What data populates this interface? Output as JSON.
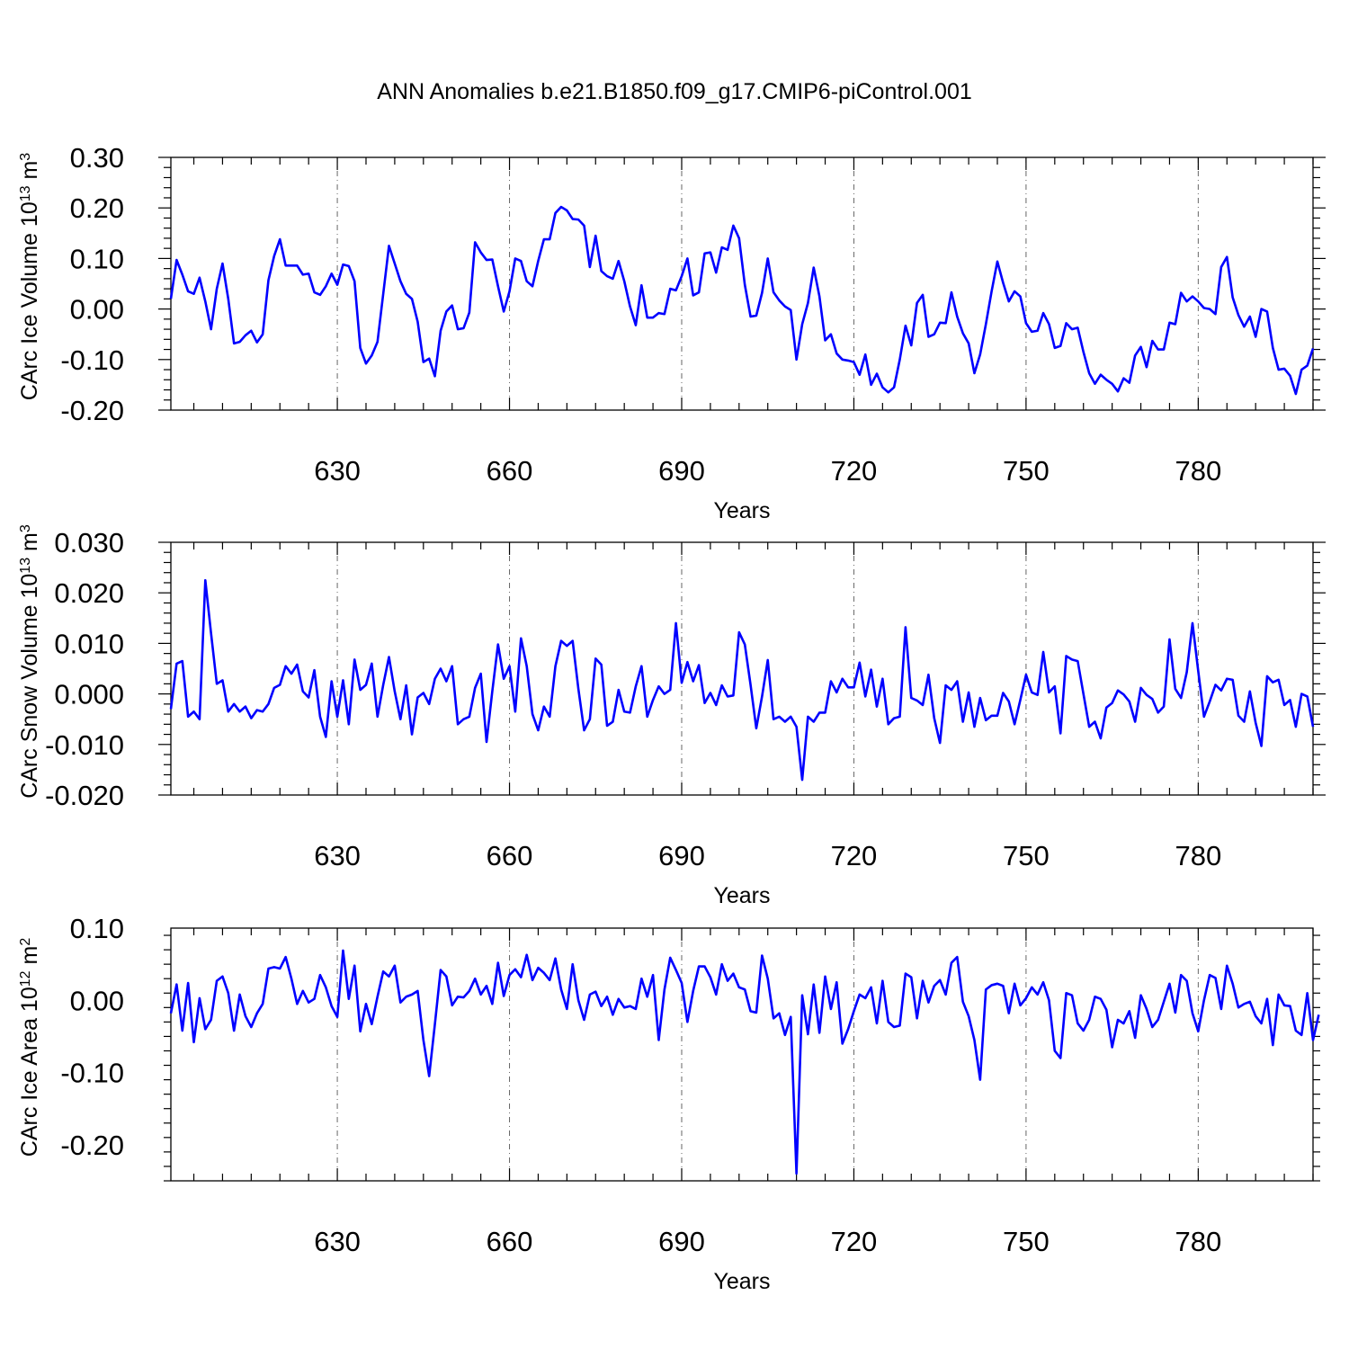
{
  "title": "ANN Anomalies b.e21.B1850.f09_g17.CMIP6-piControl.001",
  "colors": {
    "series": "#0000ff",
    "grid": "#666666",
    "axis": "#000000",
    "background": "#ffffff"
  },
  "chart_data": [
    {
      "type": "line",
      "xlabel": "Years",
      "ylabel_main": "CArc Ice Volume 10",
      "ylabel_exp": "13",
      "ylabel_unit": " m",
      "ylabel_unit_exp": "3",
      "xlim": [
        601,
        800
      ],
      "ylim": [
        -0.2,
        0.3
      ],
      "xticks": [
        630,
        660,
        690,
        720,
        750,
        780
      ],
      "xtick_labels": [
        "630",
        "660",
        "690",
        "720",
        "750",
        "780"
      ],
      "yticks": [
        -0.2,
        -0.1,
        0.0,
        0.1,
        0.2,
        0.3
      ],
      "ytick_labels": [
        "-0.20",
        "-0.10",
        "0.00",
        "0.10",
        "0.20",
        "0.30"
      ],
      "grid": "vertical dashed at major x ticks",
      "series": [
        {
          "x_start": 601,
          "x_step": 1,
          "values": [
            0.02,
            0.097,
            0.068,
            0.035,
            0.03,
            0.062,
            0.015,
            -0.04,
            0.04,
            0.09,
            0.02,
            -0.068,
            -0.065,
            -0.052,
            -0.043,
            -0.066,
            -0.05,
            0.057,
            0.105,
            0.138,
            0.086,
            0.086,
            0.086,
            0.068,
            0.07,
            0.033,
            0.028,
            0.045,
            0.07,
            0.048,
            0.088,
            0.085,
            0.055,
            -0.077,
            -0.108,
            -0.092,
            -0.065,
            0.03,
            0.125,
            0.09,
            0.055,
            0.03,
            0.02,
            -0.025,
            -0.105,
            -0.098,
            -0.133,
            -0.043,
            -0.005,
            0.007,
            -0.04,
            -0.038,
            -0.007,
            0.132,
            0.112,
            0.097,
            0.098,
            0.045,
            -0.005,
            0.035,
            0.1,
            0.095,
            0.055,
            0.045,
            0.095,
            0.138,
            0.138,
            0.19,
            0.202,
            0.195,
            0.178,
            0.177,
            0.165,
            0.083,
            0.145,
            0.075,
            0.065,
            0.06,
            0.095,
            0.055,
            0.005,
            -0.032,
            0.047,
            -0.017,
            -0.017,
            -0.008,
            -0.01,
            0.04,
            0.037,
            0.065,
            0.1,
            0.027,
            0.033,
            0.11,
            0.112,
            0.072,
            0.122,
            0.117,
            0.165,
            0.14,
            0.048,
            -0.015,
            -0.013,
            0.032,
            0.1,
            0.033,
            0.017,
            0.005,
            -0.002,
            -0.1,
            -0.03,
            0.012,
            0.082,
            0.025,
            -0.062,
            -0.05,
            -0.088,
            -0.1,
            -0.102,
            -0.105,
            -0.13,
            -0.09,
            -0.15,
            -0.128,
            -0.155,
            -0.165,
            -0.155,
            -0.1,
            -0.033,
            -0.072,
            0.012,
            0.028,
            -0.055,
            -0.05,
            -0.027,
            -0.028,
            0.033,
            -0.015,
            -0.048,
            -0.068,
            -0.127,
            -0.09,
            -0.03,
            0.035,
            0.094,
            0.052,
            0.015,
            0.035,
            0.025,
            -0.028,
            -0.045,
            -0.043,
            -0.008,
            -0.03,
            -0.077,
            -0.073,
            -0.028,
            -0.04,
            -0.037,
            -0.085,
            -0.127,
            -0.148,
            -0.13,
            -0.14,
            -0.148,
            -0.163,
            -0.137,
            -0.146,
            -0.092,
            -0.075,
            -0.115,
            -0.063,
            -0.08,
            -0.08,
            -0.027,
            -0.03,
            0.032,
            0.015,
            0.025,
            0.015,
            0.002,
            0.0,
            -0.01,
            0.083,
            0.103,
            0.023,
            -0.012,
            -0.035,
            -0.015,
            -0.055,
            0.0,
            -0.005,
            -0.077,
            -0.12,
            -0.118,
            -0.132,
            -0.168,
            -0.12,
            -0.112,
            -0.078
          ]
        }
      ]
    },
    {
      "type": "line",
      "xlabel": "Years",
      "ylabel_main": "CArc Snow Volume 10",
      "ylabel_exp": "13",
      "ylabel_unit": " m",
      "ylabel_unit_exp": "3",
      "xlim": [
        601,
        800
      ],
      "ylim": [
        -0.02,
        0.03
      ],
      "xticks": [
        630,
        660,
        690,
        720,
        750,
        780
      ],
      "xtick_labels": [
        "630",
        "660",
        "690",
        "720",
        "750",
        "780"
      ],
      "yticks": [
        -0.02,
        -0.01,
        0.0,
        0.01,
        0.02,
        0.03
      ],
      "ytick_labels": [
        "-0.020",
        "-0.010",
        "0.000",
        "0.010",
        "0.020",
        "0.030"
      ],
      "grid": "vertical dashed at major x ticks",
      "series": [
        {
          "x_start": 601,
          "x_step": 1,
          "values": [
            -0.003,
            0.006,
            0.0065,
            -0.0045,
            -0.0035,
            -0.005,
            0.0225,
            0.012,
            0.002,
            0.0027,
            -0.0035,
            -0.002,
            -0.0035,
            -0.0025,
            -0.0048,
            -0.0032,
            -0.0035,
            -0.002,
            0.0012,
            0.0018,
            0.0055,
            0.004,
            0.0058,
            0.0005,
            -0.0007,
            0.0047,
            -0.0045,
            -0.0085,
            0.0025,
            -0.0045,
            0.0027,
            -0.006,
            0.0068,
            0.0008,
            0.0018,
            0.006,
            -0.0045,
            0.0018,
            0.0073,
            0.0005,
            -0.005,
            0.0017,
            -0.008,
            -0.0007,
            0.0002,
            -0.002,
            0.003,
            0.005,
            0.0025,
            0.0055,
            -0.006,
            -0.005,
            -0.0045,
            0.0012,
            0.004,
            -0.0095,
            0.0005,
            0.0098,
            0.003,
            0.0055,
            -0.0035,
            0.011,
            0.0055,
            -0.004,
            -0.0072,
            -0.0025,
            -0.0045,
            0.0055,
            0.0105,
            0.0095,
            0.0105,
            0.001,
            -0.0072,
            -0.005,
            0.007,
            0.0058,
            -0.0063,
            -0.0055,
            0.0008,
            -0.0035,
            -0.0037,
            0.0015,
            0.0055,
            -0.0045,
            -0.0012,
            0.0015,
            0.0,
            0.0008,
            0.014,
            0.0022,
            0.0063,
            0.0025,
            0.0057,
            -0.0018,
            0.0002,
            -0.0022,
            0.0017,
            -0.0005,
            -0.0003,
            0.0122,
            0.0098,
            0.0018,
            -0.0068,
            -0.0005,
            0.0067,
            -0.005,
            -0.0045,
            -0.0055,
            -0.0045,
            -0.0065,
            -0.017,
            -0.0045,
            -0.0055,
            -0.0037,
            -0.0037,
            0.0025,
            0.0003,
            0.003,
            0.0013,
            0.0013,
            0.0062,
            -0.0005,
            0.0048,
            -0.0025,
            0.003,
            -0.006,
            -0.0048,
            -0.0045,
            0.0132,
            -0.0008,
            -0.0013,
            -0.0022,
            0.0038,
            -0.0048,
            -0.0097,
            0.0017,
            0.0008,
            0.0025,
            -0.0055,
            0.0003,
            -0.0065,
            -0.0008,
            -0.0052,
            -0.0043,
            -0.0043,
            0.0002,
            -0.0015,
            -0.006,
            -0.0012,
            0.0038,
            0.0003,
            -0.0002,
            0.0083,
            0.0003,
            0.0015,
            -0.0078,
            0.0075,
            0.0068,
            0.0065,
            0.0,
            -0.0065,
            -0.0055,
            -0.0088,
            -0.0027,
            -0.0018,
            0.0007,
            -0.0001,
            -0.0015,
            -0.0055,
            0.0012,
            -0.0002,
            -0.001,
            -0.0037,
            -0.0025,
            0.0108,
            0.001,
            -0.0008,
            0.0043,
            0.014,
            0.0045,
            -0.0045,
            -0.0015,
            0.0018,
            0.0007,
            0.003,
            0.0028,
            -0.0043,
            -0.0055,
            0.0005,
            -0.0057,
            -0.0103,
            0.0035,
            0.0023,
            0.0028,
            -0.0022,
            -0.0012,
            -0.0065,
            0.0,
            -0.0005,
            -0.0065
          ]
        }
      ]
    },
    {
      "type": "line",
      "xlabel": "Years",
      "ylabel_main": "CArc Ice Area 10",
      "ylabel_exp": "12",
      "ylabel_unit": " m",
      "ylabel_unit_exp": "2",
      "xlim": [
        601,
        800
      ],
      "ylim": [
        -0.25,
        0.1
      ],
      "xticks": [
        630,
        660,
        690,
        720,
        750,
        780
      ],
      "xtick_labels": [
        "630",
        "660",
        "690",
        "720",
        "750",
        "780"
      ],
      "yticks": [
        -0.2,
        -0.1,
        0.0,
        0.1
      ],
      "ytick_labels": [
        "-0.20",
        "-0.10",
        "0.00",
        "0.10"
      ],
      "grid": "vertical dashed at major x ticks",
      "series": [
        {
          "x_start": 601,
          "x_step": 1,
          "values": [
            -0.018,
            0.022,
            -0.042,
            0.024,
            -0.058,
            0.003,
            -0.04,
            -0.027,
            0.027,
            0.033,
            0.01,
            -0.042,
            0.008,
            -0.022,
            -0.037,
            -0.018,
            -0.005,
            0.044,
            0.046,
            0.044,
            0.06,
            0.03,
            -0.005,
            0.013,
            -0.003,
            0.002,
            0.035,
            0.018,
            -0.008,
            -0.023,
            0.069,
            0.002,
            0.048,
            -0.043,
            -0.005,
            -0.033,
            0.005,
            0.04,
            0.033,
            0.048,
            -0.003,
            0.005,
            0.008,
            0.013,
            -0.055,
            -0.105,
            -0.033,
            0.042,
            0.033,
            -0.007,
            0.005,
            0.004,
            0.013,
            0.03,
            0.008,
            0.02,
            -0.005,
            0.052,
            0.006,
            0.035,
            0.043,
            0.032,
            0.063,
            0.028,
            0.045,
            0.038,
            0.028,
            0.058,
            0.015,
            -0.012,
            0.05,
            0.0,
            -0.027,
            0.008,
            0.012,
            -0.008,
            0.005,
            -0.02,
            0.002,
            -0.01,
            -0.008,
            -0.012,
            0.03,
            0.005,
            0.035,
            -0.055,
            0.015,
            0.059,
            0.042,
            0.024,
            -0.03,
            0.013,
            0.047,
            0.047,
            0.032,
            0.008,
            0.05,
            0.027,
            0.037,
            0.018,
            0.015,
            -0.015,
            -0.017,
            0.062,
            0.03,
            -0.025,
            -0.018,
            -0.048,
            -0.023,
            -0.24,
            0.007,
            -0.047,
            0.022,
            -0.045,
            0.033,
            -0.012,
            0.025,
            -0.06,
            -0.04,
            -0.015,
            0.008,
            0.003,
            0.018,
            -0.032,
            0.027,
            -0.03,
            -0.037,
            -0.035,
            0.037,
            0.032,
            -0.025,
            0.027,
            -0.003,
            0.02,
            0.028,
            0.008,
            0.052,
            0.06,
            -0.002,
            -0.022,
            -0.055,
            -0.11,
            0.015,
            0.021,
            0.023,
            0.02,
            -0.018,
            0.023,
            -0.007,
            0.003,
            0.018,
            0.008,
            0.025,
            0.0,
            -0.07,
            -0.08,
            0.01,
            0.007,
            -0.032,
            -0.042,
            -0.027,
            0.005,
            0.002,
            -0.013,
            -0.065,
            -0.027,
            -0.032,
            -0.015,
            -0.052,
            0.007,
            -0.012,
            -0.037,
            -0.027,
            -0.002,
            0.023,
            -0.017,
            0.035,
            0.027,
            -0.018,
            -0.043,
            0.0,
            0.035,
            0.031,
            -0.012,
            0.048,
            0.023,
            -0.01,
            -0.005,
            -0.002,
            -0.022,
            -0.032,
            0.002,
            -0.062,
            0.008,
            -0.007,
            -0.008,
            -0.042,
            -0.048,
            0.01,
            -0.055,
            -0.02
          ]
        }
      ]
    }
  ]
}
